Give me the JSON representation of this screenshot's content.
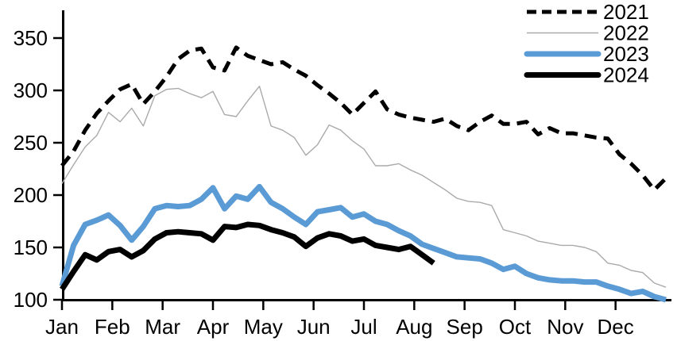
{
  "chart_data": {
    "type": "line",
    "title": "",
    "xlabel": "",
    "ylabel": "",
    "grid": false,
    "legend_position": "top-right",
    "x_unit": "week-of-year",
    "month_labels": [
      "Jan",
      "Feb",
      "Mar",
      "Apr",
      "May",
      "Jun",
      "Jul",
      "Aug",
      "Sep",
      "Oct",
      "Nov",
      "Dec"
    ],
    "y_ticks": [
      100,
      150,
      200,
      250,
      300,
      350
    ],
    "ylim": [
      100,
      377
    ],
    "weeks_per_year": 52,
    "series": [
      {
        "name": "2021",
        "style": "dashed",
        "color": "#000000",
        "stroke_width": 5,
        "values": [
          228,
          242,
          262,
          278,
          290,
          301,
          306,
          287,
          299,
          313,
          330,
          338,
          340,
          322,
          319,
          341,
          333,
          329,
          325,
          327,
          320,
          314,
          305,
          297,
          288,
          277,
          288,
          299,
          282,
          277,
          274,
          272,
          270,
          273,
          266,
          262,
          270,
          276,
          268,
          268,
          270,
          258,
          264,
          259,
          259,
          257,
          255,
          254,
          239,
          230,
          219,
          205,
          216
        ]
      },
      {
        "name": "2022",
        "style": "thin",
        "color": "#aaaaaa",
        "stroke_width": 1.4,
        "values": [
          211,
          229,
          246,
          257,
          279,
          270,
          283,
          266,
          295,
          301,
          302,
          297,
          293,
          299,
          277,
          275,
          290,
          304,
          266,
          262,
          255,
          238,
          248,
          267,
          262,
          252,
          244,
          228,
          228,
          230,
          224,
          219,
          212,
          205,
          197,
          194,
          193,
          190,
          167,
          164,
          161,
          156,
          154,
          152,
          152,
          150,
          146,
          135,
          133,
          128,
          126,
          116,
          112
        ]
      },
      {
        "name": "2023",
        "style": "thick",
        "color": "#5b9bd5",
        "stroke_width": 7,
        "values": [
          113,
          152,
          172,
          176,
          181,
          171,
          157,
          170,
          187,
          190,
          189,
          190,
          196,
          207,
          187,
          199,
          196,
          208,
          193,
          187,
          179,
          172,
          184,
          186,
          188,
          179,
          182,
          175,
          172,
          166,
          161,
          153,
          149,
          145,
          141,
          140,
          139,
          135,
          129,
          132,
          125,
          121,
          119,
          118,
          118,
          117,
          117,
          113,
          110,
          106,
          108,
          103,
          100
        ]
      },
      {
        "name": "2024",
        "style": "thick",
        "color": "#000000",
        "stroke_width": 7,
        "values": [
          110,
          127,
          143,
          138,
          146,
          148,
          141,
          147,
          158,
          164,
          165,
          164,
          163,
          157,
          170,
          169,
          172,
          171,
          167,
          164,
          160,
          151,
          159,
          163,
          161,
          156,
          158,
          152,
          150,
          148,
          151,
          143,
          135
        ]
      }
    ],
    "legend_entries": [
      "2021",
      "2022",
      "2023",
      "2024"
    ]
  }
}
